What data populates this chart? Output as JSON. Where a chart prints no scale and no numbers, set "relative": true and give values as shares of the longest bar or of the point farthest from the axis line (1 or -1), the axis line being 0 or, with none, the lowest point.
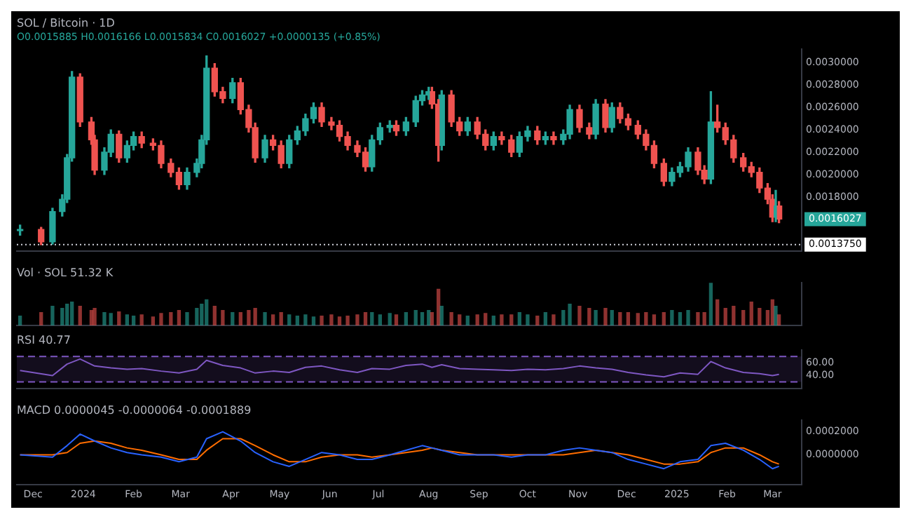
{
  "chart_data": [
    {
      "type": "candlestick",
      "title": "SOL / Bitcoin · 1D",
      "subtitle": "O0.0015885 H0.0016166 L0.0015834 C0.0016027 +0.0000135 (+0.85%)",
      "x": [
        "2023-11-23",
        "2023-12-06",
        "2023-12-13",
        "2023-12-19",
        "2023-12-22",
        "2023-12-25",
        "2023-12-30",
        "2024-01-06",
        "2024-01-08",
        "2024-01-14",
        "2024-01-18",
        "2024-01-23",
        "2024-01-28",
        "2024-02-01",
        "2024-02-06",
        "2024-02-13",
        "2024-02-18",
        "2024-02-24",
        "2024-02-29",
        "2024-03-05",
        "2024-03-11",
        "2024-03-14",
        "2024-03-17",
        "2024-03-22",
        "2024-03-27",
        "2024-04-02",
        "2024-04-07",
        "2024-04-12",
        "2024-04-16",
        "2024-04-22",
        "2024-04-27",
        "2024-05-02",
        "2024-05-07",
        "2024-05-12",
        "2024-05-17",
        "2024-05-22",
        "2024-05-27",
        "2024-06-02",
        "2024-06-07",
        "2024-06-12",
        "2024-06-18",
        "2024-06-23",
        "2024-06-27",
        "2024-07-02",
        "2024-07-08",
        "2024-07-12",
        "2024-07-18",
        "2024-07-24",
        "2024-07-28",
        "2024-08-01",
        "2024-08-03",
        "2024-08-07",
        "2024-08-09",
        "2024-08-15",
        "2024-08-20",
        "2024-08-25",
        "2024-08-31",
        "2024-09-05",
        "2024-09-10",
        "2024-09-15",
        "2024-09-21",
        "2024-09-26",
        "2024-10-01",
        "2024-10-07",
        "2024-10-12",
        "2024-10-17",
        "2024-10-23",
        "2024-10-27",
        "2024-11-02",
        "2024-11-08",
        "2024-11-12",
        "2024-11-18",
        "2024-11-22",
        "2024-11-27",
        "2024-12-02",
        "2024-12-08",
        "2024-12-13",
        "2024-12-18",
        "2024-12-24",
        "2024-12-29",
        "2025-01-03",
        "2025-01-08",
        "2025-01-14",
        "2025-01-18",
        "2025-01-22",
        "2025-01-26",
        "2025-01-31",
        "2025-02-05",
        "2025-02-11",
        "2025-02-16",
        "2025-02-21",
        "2025-02-26",
        "2025-03-01",
        "2025-03-03",
        "2025-03-05"
      ],
      "ohlc": [
        [
          0.0015,
          0.00155,
          0.00146,
          0.00151
        ],
        [
          0.00151,
          0.00153,
          0.001375,
          0.0014
        ],
        [
          0.0014,
          0.0017,
          0.00138,
          0.00167
        ],
        [
          0.00167,
          0.00182,
          0.00163,
          0.00178
        ],
        [
          0.00178,
          0.00218,
          0.00175,
          0.00215
        ],
        [
          0.00215,
          0.00292,
          0.00212,
          0.00287
        ],
        [
          0.00287,
          0.0029,
          0.00243,
          0.00247
        ],
        [
          0.00247,
          0.00251,
          0.00227,
          0.00231
        ],
        [
          0.00231,
          0.00235,
          0.002,
          0.00204
        ],
        [
          0.00204,
          0.00224,
          0.002,
          0.0022
        ],
        [
          0.0022,
          0.0024,
          0.00216,
          0.00236
        ],
        [
          0.00236,
          0.00239,
          0.00211,
          0.00215
        ],
        [
          0.00215,
          0.0023,
          0.00211,
          0.00226
        ],
        [
          0.00226,
          0.00238,
          0.00222,
          0.00234
        ],
        [
          0.00234,
          0.00238,
          0.00224,
          0.00228
        ],
        [
          0.00228,
          0.00232,
          0.00222,
          0.00226
        ],
        [
          0.00226,
          0.0023,
          0.00206,
          0.0021
        ],
        [
          0.0021,
          0.00214,
          0.00198,
          0.00202
        ],
        [
          0.00202,
          0.00206,
          0.00187,
          0.00191
        ],
        [
          0.00191,
          0.00206,
          0.00187,
          0.00202
        ],
        [
          0.00202,
          0.00214,
          0.00198,
          0.0021
        ],
        [
          0.0021,
          0.00235,
          0.00206,
          0.00231
        ],
        [
          0.00231,
          0.00306,
          0.00227,
          0.00295
        ],
        [
          0.00295,
          0.00299,
          0.0027,
          0.00274
        ],
        [
          0.00274,
          0.00278,
          0.00264,
          0.00268
        ],
        [
          0.00268,
          0.00286,
          0.00264,
          0.00282
        ],
        [
          0.00282,
          0.00286,
          0.00254,
          0.00258
        ],
        [
          0.00258,
          0.00262,
          0.00238,
          0.00242
        ],
        [
          0.00242,
          0.00246,
          0.00211,
          0.00215
        ],
        [
          0.00215,
          0.00235,
          0.00211,
          0.00231
        ],
        [
          0.00231,
          0.00235,
          0.00222,
          0.00226
        ],
        [
          0.00226,
          0.0023,
          0.00206,
          0.0021
        ],
        [
          0.0021,
          0.00235,
          0.00206,
          0.00231
        ],
        [
          0.00231,
          0.00243,
          0.00227,
          0.00239
        ],
        [
          0.00239,
          0.00254,
          0.00235,
          0.0025
        ],
        [
          0.0025,
          0.00264,
          0.00246,
          0.0026
        ],
        [
          0.0026,
          0.00264,
          0.00243,
          0.00247
        ],
        [
          0.00247,
          0.00251,
          0.0024,
          0.00244
        ],
        [
          0.00244,
          0.00248,
          0.0023,
          0.00234
        ],
        [
          0.00234,
          0.00238,
          0.00222,
          0.00226
        ],
        [
          0.00226,
          0.0023,
          0.00216,
          0.0022
        ],
        [
          0.0022,
          0.00224,
          0.00203,
          0.00207
        ],
        [
          0.00207,
          0.00235,
          0.00203,
          0.00231
        ],
        [
          0.00231,
          0.00246,
          0.00227,
          0.00242
        ],
        [
          0.00242,
          0.00248,
          0.00238,
          0.00244
        ],
        [
          0.00244,
          0.00248,
          0.00235,
          0.00239
        ],
        [
          0.00239,
          0.00251,
          0.00235,
          0.00247
        ],
        [
          0.00247,
          0.0027,
          0.00243,
          0.00266
        ],
        [
          0.00266,
          0.00275,
          0.00262,
          0.00271
        ],
        [
          0.00271,
          0.00278,
          0.00267,
          0.00274
        ],
        [
          0.00274,
          0.00278,
          0.00259,
          0.00263
        ],
        [
          0.00263,
          0.00267,
          0.00212,
          0.00226
        ],
        [
          0.00226,
          0.00275,
          0.00222,
          0.00271
        ],
        [
          0.00271,
          0.00275,
          0.00243,
          0.00247
        ],
        [
          0.00247,
          0.00251,
          0.00235,
          0.00239
        ],
        [
          0.00239,
          0.00251,
          0.00235,
          0.00247
        ],
        [
          0.00247,
          0.00251,
          0.00232,
          0.00236
        ],
        [
          0.00236,
          0.0024,
          0.00222,
          0.00226
        ],
        [
          0.00226,
          0.00238,
          0.00222,
          0.00234
        ],
        [
          0.00234,
          0.00238,
          0.00227,
          0.00231
        ],
        [
          0.00231,
          0.00235,
          0.00216,
          0.0022
        ],
        [
          0.0022,
          0.00238,
          0.00216,
          0.00234
        ],
        [
          0.00234,
          0.00243,
          0.0023,
          0.00239
        ],
        [
          0.00239,
          0.00243,
          0.00227,
          0.00231
        ],
        [
          0.00231,
          0.00238,
          0.00227,
          0.00234
        ],
        [
          0.00234,
          0.00238,
          0.00227,
          0.00231
        ],
        [
          0.00231,
          0.0024,
          0.00227,
          0.00236
        ],
        [
          0.00236,
          0.00262,
          0.00232,
          0.00258
        ],
        [
          0.00258,
          0.00262,
          0.00238,
          0.00242
        ],
        [
          0.00242,
          0.00246,
          0.00232,
          0.00236
        ],
        [
          0.00236,
          0.00267,
          0.00232,
          0.00263
        ],
        [
          0.00263,
          0.00267,
          0.00238,
          0.00242
        ],
        [
          0.00242,
          0.00264,
          0.00238,
          0.0026
        ],
        [
          0.0026,
          0.00264,
          0.00246,
          0.0025
        ],
        [
          0.0025,
          0.00254,
          0.0024,
          0.00244
        ],
        [
          0.00244,
          0.00248,
          0.00232,
          0.00236
        ],
        [
          0.00236,
          0.0024,
          0.00222,
          0.00226
        ],
        [
          0.00226,
          0.0023,
          0.00206,
          0.0021
        ],
        [
          0.0021,
          0.00214,
          0.0019,
          0.00194
        ],
        [
          0.00194,
          0.00206,
          0.0019,
          0.00202
        ],
        [
          0.00202,
          0.00211,
          0.00198,
          0.00207
        ],
        [
          0.00207,
          0.00224,
          0.00203,
          0.0022
        ],
        [
          0.0022,
          0.00224,
          0.002,
          0.00204
        ],
        [
          0.00204,
          0.00208,
          0.00192,
          0.00196
        ],
        [
          0.00196,
          0.00274,
          0.00192,
          0.00247
        ],
        [
          0.00247,
          0.00262,
          0.00238,
          0.00242
        ],
        [
          0.00242,
          0.00246,
          0.00227,
          0.00231
        ],
        [
          0.00231,
          0.00235,
          0.00211,
          0.00215
        ],
        [
          0.00215,
          0.00219,
          0.00203,
          0.00207
        ],
        [
          0.00207,
          0.00211,
          0.00198,
          0.00202
        ],
        [
          0.00202,
          0.00206,
          0.00184,
          0.00188
        ],
        [
          0.00188,
          0.00192,
          0.00174,
          0.00178
        ],
        [
          0.00178,
          0.00182,
          0.00158,
          0.00162
        ],
        [
          0.00162,
          0.00186,
          0.00158,
          0.00172
        ],
        [
          0.00172,
          0.00176,
          0.00157,
          0.0016027
        ]
      ],
      "colors": [
        "#26a69a",
        "#ef5350",
        "#26a69a",
        "#26a69a",
        "#26a69a",
        "#26a69a",
        "#ef5350",
        "#ef5350",
        "#ef5350",
        "#26a69a",
        "#26a69a",
        "#ef5350",
        "#26a69a",
        "#26a69a",
        "#ef5350",
        "#ef5350",
        "#ef5350",
        "#ef5350",
        "#ef5350",
        "#26a69a",
        "#26a69a",
        "#26a69a",
        "#26a69a",
        "#ef5350",
        "#ef5350",
        "#26a69a",
        "#ef5350",
        "#ef5350",
        "#ef5350",
        "#26a69a",
        "#ef5350",
        "#ef5350",
        "#26a69a",
        "#26a69a",
        "#26a69a",
        "#26a69a",
        "#ef5350",
        "#ef5350",
        "#ef5350",
        "#ef5350",
        "#ef5350",
        "#ef5350",
        "#26a69a",
        "#26a69a",
        "#26a69a",
        "#ef5350",
        "#26a69a",
        "#26a69a",
        "#26a69a",
        "#26a69a",
        "#ef5350",
        "#ef5350",
        "#26a69a",
        "#ef5350",
        "#ef5350",
        "#26a69a",
        "#ef5350",
        "#ef5350",
        "#26a69a",
        "#ef5350",
        "#ef5350",
        "#26a69a",
        "#26a69a",
        "#ef5350",
        "#26a69a",
        "#ef5350",
        "#26a69a",
        "#26a69a",
        "#ef5350",
        "#ef5350",
        "#26a69a",
        "#ef5350",
        "#26a69a",
        "#ef5350",
        "#ef5350",
        "#ef5350",
        "#ef5350",
        "#ef5350",
        "#ef5350",
        "#26a69a",
        "#26a69a",
        "#26a69a",
        "#ef5350",
        "#ef5350",
        "#26a69a",
        "#ef5350",
        "#ef5350",
        "#ef5350",
        "#ef5350",
        "#ef5350",
        "#ef5350",
        "#ef5350",
        "#ef5350",
        "#26a69a",
        "#ef5350"
      ],
      "xlim": [
        "2023-11-21",
        "2025-03-19"
      ],
      "ylim": [
        0.00132,
        0.00312
      ],
      "yticks": [
        {
          "value": 0.003,
          "label": "0.0030000"
        },
        {
          "value": 0.0028,
          "label": "0.0028000"
        },
        {
          "value": 0.0026,
          "label": "0.0026000"
        },
        {
          "value": 0.0024,
          "label": "0.0024000"
        },
        {
          "value": 0.0022,
          "label": "0.0022000"
        },
        {
          "value": 0.002,
          "label": "0.0020000"
        },
        {
          "value": 0.0018,
          "label": "0.0018000"
        }
      ],
      "ref_lines": [
        {
          "axis": "y",
          "value": 0.001375,
          "label": "0.0013750",
          "line_style": "dotted",
          "color": "#d1d4dc"
        }
      ],
      "annotations": [
        {
          "text": "0.0016027",
          "x": "2025-03-05",
          "y": 0.0016027
        }
      ],
      "tick_labels": "y"
    },
    {
      "type": "bar",
      "title": "Vol · SOL 51.32 K",
      "relative": true,
      "x": [
        "2023-11-23",
        "2023-12-06",
        "2023-12-13",
        "2023-12-19",
        "2023-12-22",
        "2023-12-25",
        "2023-12-30",
        "2024-01-06",
        "2024-01-08",
        "2024-01-14",
        "2024-01-18",
        "2024-01-23",
        "2024-01-28",
        "2024-02-01",
        "2024-02-06",
        "2024-02-13",
        "2024-02-18",
        "2024-02-24",
        "2024-02-29",
        "2024-03-05",
        "2024-03-11",
        "2024-03-14",
        "2024-03-17",
        "2024-03-22",
        "2024-03-27",
        "2024-04-02",
        "2024-04-07",
        "2024-04-12",
        "2024-04-16",
        "2024-04-22",
        "2024-04-27",
        "2024-05-02",
        "2024-05-07",
        "2024-05-12",
        "2024-05-17",
        "2024-05-22",
        "2024-05-27",
        "2024-06-02",
        "2024-06-07",
        "2024-06-12",
        "2024-06-18",
        "2024-06-23",
        "2024-06-27",
        "2024-07-02",
        "2024-07-08",
        "2024-07-12",
        "2024-07-18",
        "2024-07-24",
        "2024-07-28",
        "2024-08-01",
        "2024-08-03",
        "2024-08-07",
        "2024-08-09",
        "2024-08-15",
        "2024-08-20",
        "2024-08-25",
        "2024-08-31",
        "2024-09-05",
        "2024-09-10",
        "2024-09-15",
        "2024-09-21",
        "2024-09-26",
        "2024-10-01",
        "2024-10-07",
        "2024-10-12",
        "2024-10-17",
        "2024-10-23",
        "2024-10-27",
        "2024-11-02",
        "2024-11-08",
        "2024-11-12",
        "2024-11-18",
        "2024-11-22",
        "2024-11-27",
        "2024-12-02",
        "2024-12-08",
        "2024-12-13",
        "2024-12-18",
        "2024-12-24",
        "2024-12-29",
        "2025-01-03",
        "2025-01-08",
        "2025-01-14",
        "2025-01-18",
        "2025-01-22",
        "2025-01-26",
        "2025-01-31",
        "2025-02-05",
        "2025-02-11",
        "2025-02-16",
        "2025-02-21",
        "2025-02-26",
        "2025-03-01",
        "2025-03-03",
        "2025-03-05"
      ],
      "values": [
        0.22,
        0.3,
        0.45,
        0.4,
        0.5,
        0.55,
        0.45,
        0.35,
        0.4,
        0.3,
        0.28,
        0.32,
        0.25,
        0.22,
        0.25,
        0.2,
        0.28,
        0.3,
        0.35,
        0.3,
        0.4,
        0.5,
        0.6,
        0.45,
        0.35,
        0.3,
        0.3,
        0.35,
        0.4,
        0.3,
        0.25,
        0.3,
        0.25,
        0.22,
        0.25,
        0.2,
        0.22,
        0.25,
        0.2,
        0.22,
        0.25,
        0.3,
        0.3,
        0.25,
        0.28,
        0.25,
        0.3,
        0.35,
        0.3,
        0.35,
        0.3,
        0.85,
        0.45,
        0.3,
        0.25,
        0.22,
        0.25,
        0.28,
        0.22,
        0.25,
        0.25,
        0.3,
        0.25,
        0.22,
        0.3,
        0.25,
        0.35,
        0.5,
        0.45,
        0.4,
        0.35,
        0.4,
        0.35,
        0.3,
        0.3,
        0.28,
        0.3,
        0.25,
        0.3,
        0.35,
        0.3,
        0.35,
        0.3,
        0.3,
        1,
        0.6,
        0.4,
        0.45,
        0.35,
        0.55,
        0.4,
        0.35,
        0.6,
        0.45,
        0.25
      ],
      "colors": [
        "#26a69a",
        "#ef5350",
        "#26a69a",
        "#26a69a",
        "#26a69a",
        "#26a69a",
        "#ef5350",
        "#ef5350",
        "#ef5350",
        "#26a69a",
        "#26a69a",
        "#ef5350",
        "#26a69a",
        "#26a69a",
        "#ef5350",
        "#ef5350",
        "#ef5350",
        "#ef5350",
        "#ef5350",
        "#26a69a",
        "#26a69a",
        "#26a69a",
        "#26a69a",
        "#ef5350",
        "#ef5350",
        "#26a69a",
        "#ef5350",
        "#ef5350",
        "#ef5350",
        "#26a69a",
        "#ef5350",
        "#ef5350",
        "#26a69a",
        "#26a69a",
        "#26a69a",
        "#26a69a",
        "#ef5350",
        "#ef5350",
        "#ef5350",
        "#ef5350",
        "#ef5350",
        "#ef5350",
        "#26a69a",
        "#26a69a",
        "#26a69a",
        "#ef5350",
        "#26a69a",
        "#26a69a",
        "#26a69a",
        "#26a69a",
        "#ef5350",
        "#ef5350",
        "#26a69a",
        "#ef5350",
        "#ef5350",
        "#26a69a",
        "#ef5350",
        "#ef5350",
        "#26a69a",
        "#ef5350",
        "#ef5350",
        "#26a69a",
        "#26a69a",
        "#ef5350",
        "#26a69a",
        "#ef5350",
        "#26a69a",
        "#26a69a",
        "#ef5350",
        "#ef5350",
        "#26a69a",
        "#ef5350",
        "#26a69a",
        "#ef5350",
        "#ef5350",
        "#ef5350",
        "#ef5350",
        "#ef5350",
        "#ef5350",
        "#26a69a",
        "#26a69a",
        "#26a69a",
        "#ef5350",
        "#ef5350",
        "#26a69a",
        "#ef5350",
        "#ef5350",
        "#ef5350",
        "#ef5350",
        "#ef5350",
        "#ef5350",
        "#ef5350",
        "#ef5350",
        "#26a69a",
        "#ef5350"
      ],
      "xlim": [
        "2023-11-21",
        "2025-03-19"
      ],
      "tick_labels": false
    },
    {
      "type": "line",
      "title": "RSI 40.77",
      "x": [
        "2023-11-23",
        "2023-12-13",
        "2023-12-22",
        "2023-12-30",
        "2024-01-08",
        "2024-01-18",
        "2024-01-28",
        "2024-02-06",
        "2024-02-18",
        "2024-02-29",
        "2024-03-11",
        "2024-03-17",
        "2024-03-27",
        "2024-04-07",
        "2024-04-16",
        "2024-04-27",
        "2024-05-07",
        "2024-05-17",
        "2024-05-27",
        "2024-06-07",
        "2024-06-18",
        "2024-06-27",
        "2024-07-08",
        "2024-07-18",
        "2024-07-28",
        "2024-08-03",
        "2024-08-09",
        "2024-08-20",
        "2024-08-31",
        "2024-09-10",
        "2024-09-21",
        "2024-10-01",
        "2024-10-12",
        "2024-10-23",
        "2024-11-02",
        "2024-11-12",
        "2024-11-22",
        "2024-12-02",
        "2024-12-13",
        "2024-12-24",
        "2025-01-03",
        "2025-01-14",
        "2025-01-22",
        "2025-01-31",
        "2025-02-11",
        "2025-02-21",
        "2025-03-01",
        "2025-03-05"
      ],
      "series": [
        {
          "color": "#7e57c2",
          "values": [
            48,
            40,
            58,
            66,
            55,
            52,
            50,
            51,
            47,
            44,
            50,
            64,
            56,
            52,
            44,
            47,
            45,
            53,
            55,
            49,
            45,
            51,
            50,
            56,
            58,
            53,
            57,
            51,
            50,
            49,
            48,
            50,
            49,
            51,
            55,
            52,
            50,
            45,
            41,
            38,
            44,
            42,
            62,
            52,
            45,
            43,
            40,
            42
          ]
        }
      ],
      "bands": [
        {
          "axis": "y",
          "from": 30,
          "to": 70,
          "color": "#7e57c2"
        }
      ],
      "ref_lines": [
        {
          "axis": "y",
          "value": 70,
          "line_style": "dashed",
          "color": "#7e57c2"
        },
        {
          "axis": "y",
          "value": 30,
          "line_style": "dashed",
          "color": "#7e57c2"
        }
      ],
      "xlim": [
        "2023-11-21",
        "2025-03-19"
      ],
      "ylim": [
        20,
        80
      ],
      "yticks": [
        {
          "value": 60,
          "label": "60.00"
        },
        {
          "value": 40,
          "label": "40.00"
        }
      ],
      "tick_labels": "y"
    },
    {
      "type": "line",
      "title": "MACD 0.0000045 -0.0000064 -0.0001889",
      "x": [
        "2023-11-23",
        "2023-12-13",
        "2023-12-22",
        "2023-12-30",
        "2024-01-08",
        "2024-01-18",
        "2024-01-28",
        "2024-02-06",
        "2024-02-18",
        "2024-02-29",
        "2024-03-11",
        "2024-03-17",
        "2024-03-27",
        "2024-04-07",
        "2024-04-16",
        "2024-04-27",
        "2024-05-07",
        "2024-05-17",
        "2024-05-27",
        "2024-06-07",
        "2024-06-18",
        "2024-06-27",
        "2024-07-08",
        "2024-07-18",
        "2024-07-28",
        "2024-08-03",
        "2024-08-09",
        "2024-08-20",
        "2024-08-31",
        "2024-09-10",
        "2024-09-21",
        "2024-10-01",
        "2024-10-12",
        "2024-10-23",
        "2024-11-02",
        "2024-11-12",
        "2024-11-22",
        "2024-12-02",
        "2024-12-13",
        "2024-12-24",
        "2025-01-03",
        "2025-01-14",
        "2025-01-22",
        "2025-01-31",
        "2025-02-11",
        "2025-02-21",
        "2025-03-01",
        "2025-03-05"
      ],
      "series": [
        {
          "color": "#2962ff",
          "values": [
            0,
            -2e-05,
            8e-05,
            0.00018,
            0.00012,
            6e-05,
            2e-05,
            0,
            -2e-05,
            -6e-05,
            -2e-05,
            0.00014,
            0.0002,
            0.00012,
            2e-05,
            -6e-05,
            -0.0001,
            -4e-05,
            2e-05,
            0,
            -4e-05,
            -4e-05,
            0,
            4e-05,
            8e-05,
            6e-05,
            4e-05,
            0,
            0,
            0,
            -2e-05,
            0,
            0,
            4e-05,
            6e-05,
            4e-05,
            2e-05,
            -4e-05,
            -8e-05,
            -0.00012,
            -6e-05,
            -4e-05,
            8e-05,
            0.0001,
            4e-05,
            -4e-05,
            -0.00012,
            -0.0001
          ]
        },
        {
          "color": "#ff6d00",
          "values": [
            0,
            0,
            2e-05,
            0.0001,
            0.00012,
            0.0001,
            6e-05,
            4e-05,
            0,
            -4e-05,
            -4e-05,
            4e-05,
            0.00014,
            0.00014,
            8e-05,
            0,
            -6e-05,
            -6e-05,
            -2e-05,
            0,
            0,
            -2e-05,
            0,
            2e-05,
            4e-05,
            6e-05,
            4e-05,
            2e-05,
            0,
            0,
            0,
            0,
            0,
            0,
            2e-05,
            4e-05,
            2e-05,
            0,
            -4e-05,
            -8e-05,
            -8e-05,
            -6e-05,
            2e-05,
            6e-05,
            6e-05,
            0,
            -6e-05,
            -8e-05
          ]
        }
      ],
      "xlim": [
        "2023-11-21",
        "2025-03-19"
      ],
      "ylim": [
        -0.00026,
        0.0003
      ],
      "yticks": [
        {
          "value": 0.0002,
          "label": "0.0002000"
        },
        {
          "value": 0,
          "label": "0.0000000"
        }
      ],
      "xticks": [
        {
          "value": "2023-12-01",
          "label": "Dec"
        },
        {
          "value": "2024-01-01",
          "label": "2024"
        },
        {
          "value": "2024-02-01",
          "label": "Feb"
        },
        {
          "value": "2024-03-01",
          "label": "Mar"
        },
        {
          "value": "2024-04-01",
          "label": "Apr"
        },
        {
          "value": "2024-05-01",
          "label": "May"
        },
        {
          "value": "2024-06-01",
          "label": "Jun"
        },
        {
          "value": "2024-07-01",
          "label": "Jul"
        },
        {
          "value": "2024-08-01",
          "label": "Aug"
        },
        {
          "value": "2024-09-01",
          "label": "Sep"
        },
        {
          "value": "2024-10-01",
          "label": "Oct"
        },
        {
          "value": "2024-11-01",
          "label": "Nov"
        },
        {
          "value": "2024-12-01",
          "label": "Dec"
        },
        {
          "value": "2025-01-01",
          "label": "2025"
        },
        {
          "value": "2025-02-01",
          "label": "Feb"
        },
        {
          "value": "2025-03-01",
          "label": "Mar"
        }
      ]
    }
  ]
}
